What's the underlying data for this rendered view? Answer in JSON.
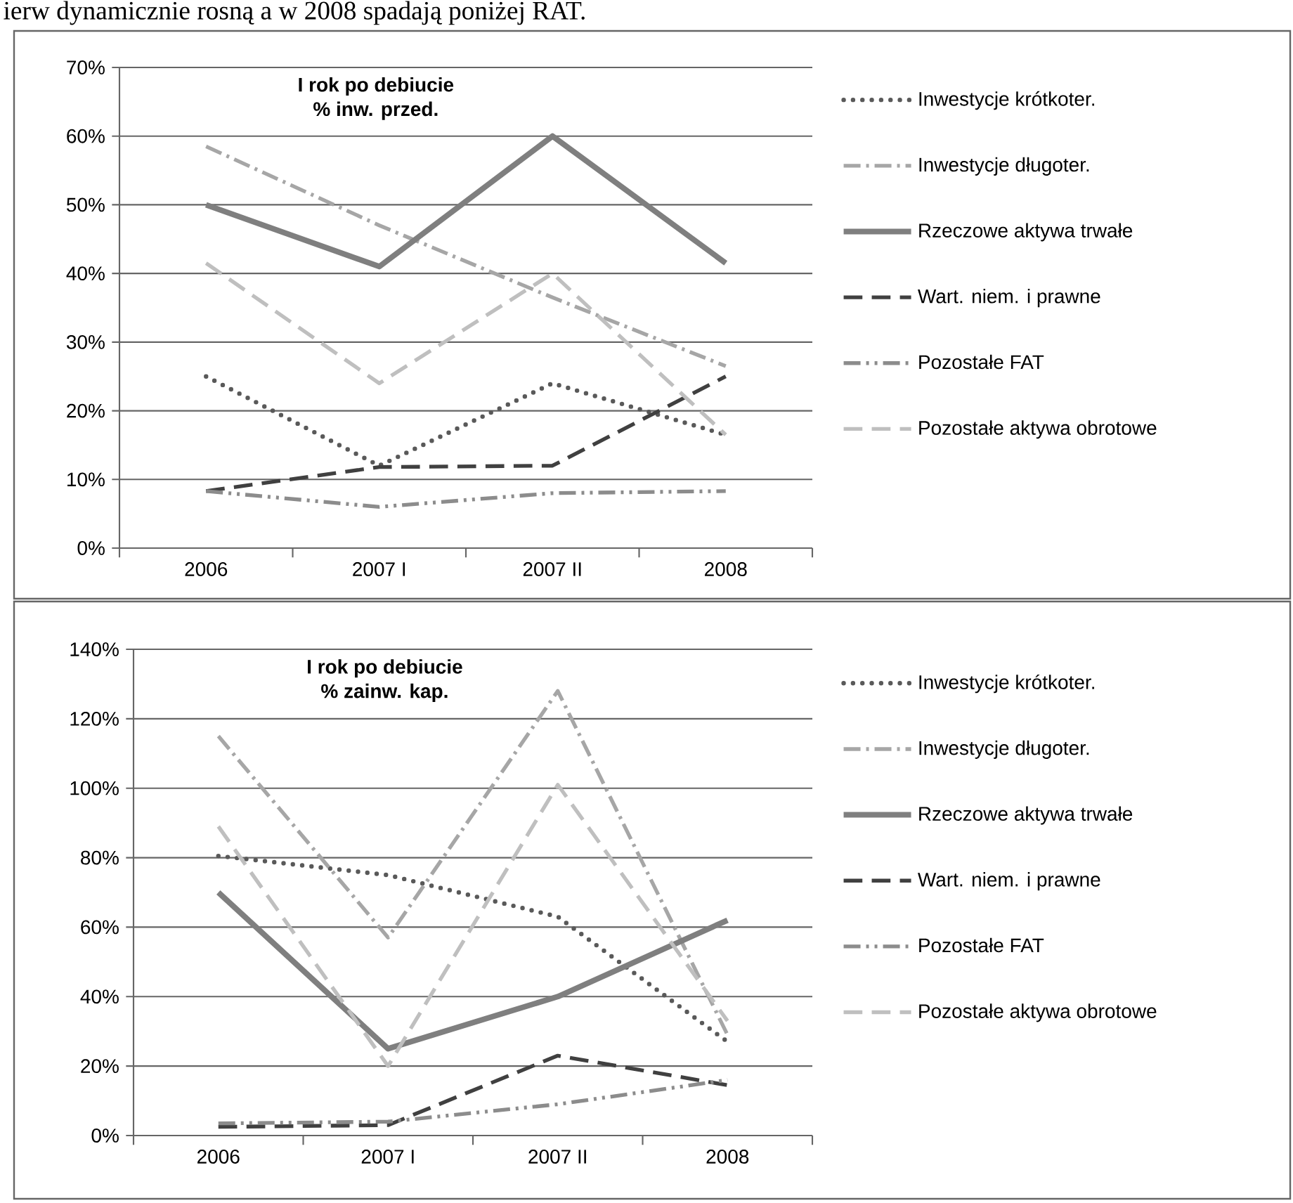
{
  "chart_data": [
    {
      "type": "line",
      "title": "I rok po debiucie",
      "subtitle": "% inw. przed.",
      "annotations": [
        "ierw dynamicznie rosną a w 2008 spadają poniżej RAT."
      ],
      "categories": [
        "2006",
        "2007 I",
        "2007 II",
        "2008"
      ],
      "ylim": [
        0,
        70
      ],
      "yticks": [
        {
          "value": 0,
          "label": "0%"
        },
        {
          "value": 10,
          "label": "10%"
        },
        {
          "value": 20,
          "label": "20%"
        },
        {
          "value": 30,
          "label": "30%"
        },
        {
          "value": 40,
          "label": "40%"
        },
        {
          "value": 50,
          "label": "50%"
        },
        {
          "value": 60,
          "label": "60%"
        },
        {
          "value": 70,
          "label": "70%"
        }
      ],
      "grid": "y",
      "legend": "right",
      "series": [
        {
          "name": "Inwestycje krótkoter.",
          "color": "#595959",
          "line_style": "dotted",
          "values": [
            25,
            12,
            24,
            16.5
          ]
        },
        {
          "name": "Inwestycje długoter.",
          "color": "#a6a6a6",
          "line_style": "dashdot",
          "values": [
            58.5,
            47,
            36.5,
            26.5
          ]
        },
        {
          "name": "Rzeczowe aktywa trwałe",
          "color": "#7f7f7f",
          "line_style": "solid",
          "values": [
            50,
            41,
            60,
            41.5
          ]
        },
        {
          "name": "Wart. niem. i prawne",
          "color": "#404040",
          "line_style": "dashed",
          "values": [
            8.3,
            11.8,
            12,
            25
          ]
        },
        {
          "name": "Pozostałe FAT",
          "color": "#8c8c8c",
          "line_style": "dashdotdot",
          "values": [
            8.3,
            6,
            8,
            8.3
          ]
        },
        {
          "name": "Pozostałe aktywa obrotowe",
          "color": "#bfbfbf",
          "line_style": "dashed",
          "values": [
            41.5,
            24,
            40,
            16.5
          ]
        }
      ]
    },
    {
      "type": "line",
      "title": "I rok po debiucie",
      "subtitle": "% zainw. kap.",
      "categories": [
        "2006",
        "2007 I",
        "2007 II",
        "2008"
      ],
      "ylim": [
        0,
        140
      ],
      "yticks": [
        {
          "value": 0,
          "label": "0%"
        },
        {
          "value": 20,
          "label": "20%"
        },
        {
          "value": 40,
          "label": "40%"
        },
        {
          "value": 60,
          "label": "60%"
        },
        {
          "value": 80,
          "label": "80%"
        },
        {
          "value": 100,
          "label": "100%"
        },
        {
          "value": 120,
          "label": "120%"
        },
        {
          "value": 140,
          "label": "140%"
        }
      ],
      "grid": "y",
      "legend": "right",
      "series": [
        {
          "name": "Inwestycje krótkoter.",
          "color": "#595959",
          "line_style": "dotted",
          "values": [
            80.5,
            75,
            63,
            27
          ]
        },
        {
          "name": "Inwestycje długoter.",
          "color": "#a6a6a6",
          "line_style": "dashdot",
          "values": [
            115,
            57,
            128,
            29
          ]
        },
        {
          "name": "Rzeczowe aktywa trwałe",
          "color": "#7f7f7f",
          "line_style": "solid",
          "values": [
            70,
            25,
            40,
            62
          ]
        },
        {
          "name": "Wart. niem. i prawne",
          "color": "#404040",
          "line_style": "dashed",
          "values": [
            2.5,
            3,
            23,
            14.5
          ]
        },
        {
          "name": "Pozostałe FAT",
          "color": "#8c8c8c",
          "line_style": "dashdotdot",
          "values": [
            3.5,
            4,
            9,
            16
          ]
        },
        {
          "name": "Pozostałe aktywa obrotowe",
          "color": "#bfbfbf",
          "line_style": "dashed",
          "values": [
            89,
            20,
            101,
            33
          ]
        }
      ]
    }
  ]
}
